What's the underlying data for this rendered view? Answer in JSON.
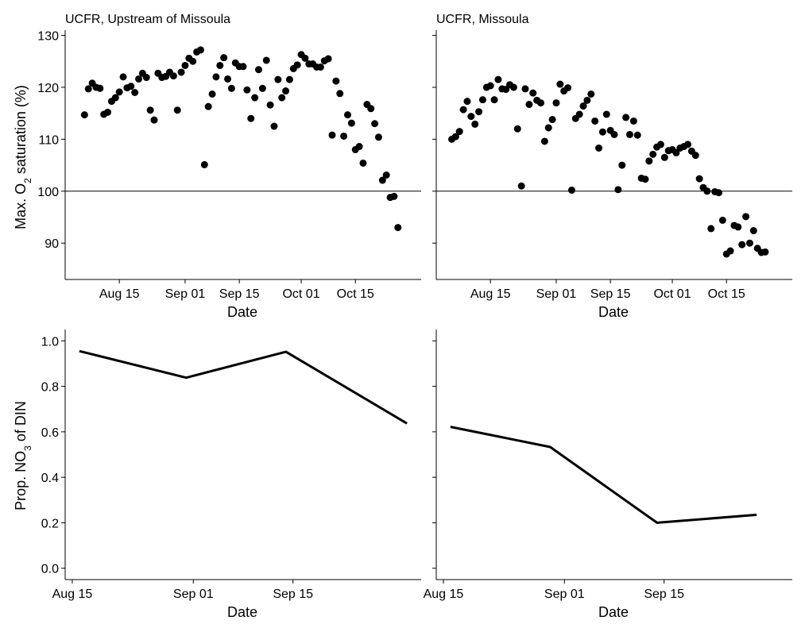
{
  "figure": {
    "panels": {
      "upstream": {
        "title": "UCFR, Upstream of Missoula"
      },
      "missoula": {
        "title": "UCFR, Missoula"
      }
    },
    "top_ylabel": {
      "pre": "Max. O",
      "sub": "2",
      "post": " saturation (%)"
    },
    "bottom_ylabel": {
      "pre": "Prop. NO",
      "sub": "3",
      "post": " of DIN"
    },
    "xlabel": "Date"
  },
  "chart_data": [
    {
      "type": "scatter",
      "panel": "UCFR, Upstream of Missoula",
      "row": "top",
      "title": "UCFR, Upstream of Missoula",
      "xlabel": "Date",
      "ylabel": "Max. O2 saturation (%)",
      "x_ticks": [
        {
          "date": "2019-08-15",
          "label": "Aug 15"
        },
        {
          "date": "2019-09-01",
          "label": "Sep 01"
        },
        {
          "date": "2019-09-15",
          "label": "Sep 15"
        },
        {
          "date": "2019-10-01",
          "label": "Oct 01"
        },
        {
          "date": "2019-10-15",
          "label": "Oct 15"
        }
      ],
      "y_ticks": [
        90,
        100,
        110,
        120,
        130
      ],
      "xlim": [
        "2019-08-01",
        "2019-11-01"
      ],
      "ylim": [
        83,
        131
      ],
      "hline": 100,
      "grid": false,
      "points": [
        {
          "x": "2019-08-06",
          "y": 114.7
        },
        {
          "x": "2019-08-07",
          "y": 119.7
        },
        {
          "x": "2019-08-08",
          "y": 120.8
        },
        {
          "x": "2019-08-09",
          "y": 120.0
        },
        {
          "x": "2019-08-10",
          "y": 119.8
        },
        {
          "x": "2019-08-11",
          "y": 114.8
        },
        {
          "x": "2019-08-12",
          "y": 115.2
        },
        {
          "x": "2019-08-13",
          "y": 117.3
        },
        {
          "x": "2019-08-14",
          "y": 118.0
        },
        {
          "x": "2019-08-15",
          "y": 119.1
        },
        {
          "x": "2019-08-16",
          "y": 122.0
        },
        {
          "x": "2019-08-17",
          "y": 119.9
        },
        {
          "x": "2019-08-18",
          "y": 120.2
        },
        {
          "x": "2019-08-19",
          "y": 119.0
        },
        {
          "x": "2019-08-20",
          "y": 121.6
        },
        {
          "x": "2019-08-21",
          "y": 122.7
        },
        {
          "x": "2019-08-22",
          "y": 121.9
        },
        {
          "x": "2019-08-23",
          "y": 115.6
        },
        {
          "x": "2019-08-24",
          "y": 113.7
        },
        {
          "x": "2019-08-25",
          "y": 122.7
        },
        {
          "x": "2019-08-26",
          "y": 121.9
        },
        {
          "x": "2019-08-27",
          "y": 122.1
        },
        {
          "x": "2019-08-28",
          "y": 122.9
        },
        {
          "x": "2019-08-29",
          "y": 122.2
        },
        {
          "x": "2019-08-30",
          "y": 115.6
        },
        {
          "x": "2019-08-31",
          "y": 122.9
        },
        {
          "x": "2019-09-01",
          "y": 124.2
        },
        {
          "x": "2019-09-02",
          "y": 125.6
        },
        {
          "x": "2019-09-03",
          "y": 125.0
        },
        {
          "x": "2019-09-04",
          "y": 126.8
        },
        {
          "x": "2019-09-05",
          "y": 127.2
        },
        {
          "x": "2019-09-06",
          "y": 105.1
        },
        {
          "x": "2019-09-07",
          "y": 116.3
        },
        {
          "x": "2019-09-08",
          "y": 118.7
        },
        {
          "x": "2019-09-09",
          "y": 122.0
        },
        {
          "x": "2019-09-10",
          "y": 124.2
        },
        {
          "x": "2019-09-11",
          "y": 125.7
        },
        {
          "x": "2019-09-12",
          "y": 121.6
        },
        {
          "x": "2019-09-13",
          "y": 119.8
        },
        {
          "x": "2019-09-14",
          "y": 124.7
        },
        {
          "x": "2019-09-15",
          "y": 124.0
        },
        {
          "x": "2019-09-16",
          "y": 124.0
        },
        {
          "x": "2019-09-17",
          "y": 119.5
        },
        {
          "x": "2019-09-18",
          "y": 114.0
        },
        {
          "x": "2019-09-19",
          "y": 118.0
        },
        {
          "x": "2019-09-20",
          "y": 123.4
        },
        {
          "x": "2019-09-21",
          "y": 119.8
        },
        {
          "x": "2019-09-22",
          "y": 125.2
        },
        {
          "x": "2019-09-23",
          "y": 116.6
        },
        {
          "x": "2019-09-24",
          "y": 112.5
        },
        {
          "x": "2019-09-25",
          "y": 121.5
        },
        {
          "x": "2019-09-26",
          "y": 118.0
        },
        {
          "x": "2019-09-27",
          "y": 119.3
        },
        {
          "x": "2019-09-28",
          "y": 121.5
        },
        {
          "x": "2019-09-29",
          "y": 123.6
        },
        {
          "x": "2019-09-30",
          "y": 124.3
        },
        {
          "x": "2019-10-01",
          "y": 126.3
        },
        {
          "x": "2019-10-02",
          "y": 125.6
        },
        {
          "x": "2019-10-03",
          "y": 124.5
        },
        {
          "x": "2019-10-04",
          "y": 124.5
        },
        {
          "x": "2019-10-05",
          "y": 123.9
        },
        {
          "x": "2019-10-06",
          "y": 123.9
        },
        {
          "x": "2019-10-07",
          "y": 125.1
        },
        {
          "x": "2019-10-08",
          "y": 125.5
        },
        {
          "x": "2019-10-09",
          "y": 110.8
        },
        {
          "x": "2019-10-10",
          "y": 121.2
        },
        {
          "x": "2019-10-11",
          "y": 118.8
        },
        {
          "x": "2019-10-12",
          "y": 110.6
        },
        {
          "x": "2019-10-13",
          "y": 114.7
        },
        {
          "x": "2019-10-14",
          "y": 113.1
        },
        {
          "x": "2019-10-15",
          "y": 108.0
        },
        {
          "x": "2019-10-16",
          "y": 108.6
        },
        {
          "x": "2019-10-17",
          "y": 105.4
        },
        {
          "x": "2019-10-18",
          "y": 116.7
        },
        {
          "x": "2019-10-19",
          "y": 115.9
        },
        {
          "x": "2019-10-20",
          "y": 113.0
        },
        {
          "x": "2019-10-21",
          "y": 110.4
        },
        {
          "x": "2019-10-22",
          "y": 102.1
        },
        {
          "x": "2019-10-23",
          "y": 103.1
        },
        {
          "x": "2019-10-24",
          "y": 98.8
        },
        {
          "x": "2019-10-25",
          "y": 99.0
        },
        {
          "x": "2019-10-26",
          "y": 93.0
        }
      ]
    },
    {
      "type": "scatter",
      "panel": "UCFR, Missoula",
      "row": "top",
      "title": "UCFR, Missoula",
      "xlabel": "Date",
      "ylabel": "Max. O2 saturation (%)",
      "x_ticks": [
        {
          "date": "2019-08-15",
          "label": "Aug 15"
        },
        {
          "date": "2019-09-01",
          "label": "Sep 01"
        },
        {
          "date": "2019-09-15",
          "label": "Sep 15"
        },
        {
          "date": "2019-10-01",
          "label": "Oct 01"
        },
        {
          "date": "2019-10-15",
          "label": "Oct 15"
        }
      ],
      "y_ticks": [
        90,
        100,
        110,
        120,
        130
      ],
      "xlim": [
        "2019-08-01",
        "2019-11-01"
      ],
      "ylim": [
        83,
        131
      ],
      "hline": 100,
      "grid": false,
      "points": [
        {
          "x": "2019-08-05",
          "y": 110.0
        },
        {
          "x": "2019-08-06",
          "y": 110.5
        },
        {
          "x": "2019-08-07",
          "y": 111.5
        },
        {
          "x": "2019-08-08",
          "y": 115.7
        },
        {
          "x": "2019-08-09",
          "y": 117.3
        },
        {
          "x": "2019-08-10",
          "y": 114.4
        },
        {
          "x": "2019-08-11",
          "y": 112.9
        },
        {
          "x": "2019-08-12",
          "y": 115.3
        },
        {
          "x": "2019-08-13",
          "y": 117.6
        },
        {
          "x": "2019-08-14",
          "y": 120.0
        },
        {
          "x": "2019-08-15",
          "y": 120.3
        },
        {
          "x": "2019-08-16",
          "y": 117.6
        },
        {
          "x": "2019-08-17",
          "y": 121.5
        },
        {
          "x": "2019-08-18",
          "y": 119.7
        },
        {
          "x": "2019-08-19",
          "y": 119.6
        },
        {
          "x": "2019-08-20",
          "y": 120.5
        },
        {
          "x": "2019-08-21",
          "y": 120.0
        },
        {
          "x": "2019-08-22",
          "y": 112.0
        },
        {
          "x": "2019-08-23",
          "y": 101.0
        },
        {
          "x": "2019-08-24",
          "y": 119.7
        },
        {
          "x": "2019-08-25",
          "y": 116.7
        },
        {
          "x": "2019-08-26",
          "y": 118.9
        },
        {
          "x": "2019-08-27",
          "y": 117.5
        },
        {
          "x": "2019-08-28",
          "y": 117.0
        },
        {
          "x": "2019-08-29",
          "y": 109.6
        },
        {
          "x": "2019-08-30",
          "y": 112.2
        },
        {
          "x": "2019-08-31",
          "y": 113.8
        },
        {
          "x": "2019-09-01",
          "y": 117.0
        },
        {
          "x": "2019-09-02",
          "y": 120.6
        },
        {
          "x": "2019-09-03",
          "y": 119.3
        },
        {
          "x": "2019-09-04",
          "y": 119.9
        },
        {
          "x": "2019-09-05",
          "y": 100.2
        },
        {
          "x": "2019-09-06",
          "y": 114.0
        },
        {
          "x": "2019-09-07",
          "y": 114.8
        },
        {
          "x": "2019-09-08",
          "y": 116.4
        },
        {
          "x": "2019-09-09",
          "y": 117.5
        },
        {
          "x": "2019-09-10",
          "y": 118.7
        },
        {
          "x": "2019-09-11",
          "y": 113.5
        },
        {
          "x": "2019-09-12",
          "y": 108.3
        },
        {
          "x": "2019-09-13",
          "y": 111.4
        },
        {
          "x": "2019-09-14",
          "y": 114.8
        },
        {
          "x": "2019-09-15",
          "y": 111.7
        },
        {
          "x": "2019-09-16",
          "y": 110.9
        },
        {
          "x": "2019-09-17",
          "y": 100.3
        },
        {
          "x": "2019-09-18",
          "y": 105.0
        },
        {
          "x": "2019-09-19",
          "y": 114.2
        },
        {
          "x": "2019-09-20",
          "y": 110.9
        },
        {
          "x": "2019-09-21",
          "y": 113.5
        },
        {
          "x": "2019-09-22",
          "y": 110.8
        },
        {
          "x": "2019-09-23",
          "y": 102.5
        },
        {
          "x": "2019-09-24",
          "y": 102.3
        },
        {
          "x": "2019-09-25",
          "y": 105.8
        },
        {
          "x": "2019-09-26",
          "y": 107.1
        },
        {
          "x": "2019-09-27",
          "y": 108.5
        },
        {
          "x": "2019-09-28",
          "y": 109.0
        },
        {
          "x": "2019-09-29",
          "y": 106.5
        },
        {
          "x": "2019-09-30",
          "y": 107.8
        },
        {
          "x": "2019-10-01",
          "y": 108.0
        },
        {
          "x": "2019-10-02",
          "y": 107.4
        },
        {
          "x": "2019-10-03",
          "y": 108.3
        },
        {
          "x": "2019-10-04",
          "y": 108.6
        },
        {
          "x": "2019-10-05",
          "y": 109.0
        },
        {
          "x": "2019-10-06",
          "y": 107.7
        },
        {
          "x": "2019-10-07",
          "y": 106.9
        },
        {
          "x": "2019-10-08",
          "y": 102.4
        },
        {
          "x": "2019-10-09",
          "y": 100.7
        },
        {
          "x": "2019-10-10",
          "y": 100.0
        },
        {
          "x": "2019-10-11",
          "y": 92.8
        },
        {
          "x": "2019-10-12",
          "y": 99.9
        },
        {
          "x": "2019-10-13",
          "y": 99.7
        },
        {
          "x": "2019-10-14",
          "y": 94.4
        },
        {
          "x": "2019-10-15",
          "y": 87.9
        },
        {
          "x": "2019-10-16",
          "y": 88.5
        },
        {
          "x": "2019-10-17",
          "y": 93.4
        },
        {
          "x": "2019-10-18",
          "y": 93.1
        },
        {
          "x": "2019-10-19",
          "y": 89.7
        },
        {
          "x": "2019-10-20",
          "y": 95.1
        },
        {
          "x": "2019-10-21",
          "y": 90.0
        },
        {
          "x": "2019-10-22",
          "y": 92.4
        },
        {
          "x": "2019-10-23",
          "y": 89.0
        },
        {
          "x": "2019-10-24",
          "y": 88.2
        },
        {
          "x": "2019-10-25",
          "y": 88.3
        }
      ]
    },
    {
      "type": "line",
      "panel": "UCFR, Upstream of Missoula",
      "row": "bottom",
      "xlabel": "Date",
      "ylabel": "Prop. NO3 of DIN",
      "x_ticks": [
        {
          "date": "2019-08-15",
          "label": "Aug 15"
        },
        {
          "date": "2019-09-01",
          "label": "Sep 01"
        },
        {
          "date": "2019-09-15",
          "label": "Sep 15"
        }
      ],
      "y_ticks": [
        0.0,
        0.2,
        0.4,
        0.6,
        0.8,
        1.0
      ],
      "y_tick_labels": [
        "0.0",
        "0.2",
        "0.4",
        "0.6",
        "0.8",
        "1.0"
      ],
      "xlim": [
        "2019-08-14",
        "2019-10-03"
      ],
      "ylim": [
        -0.05,
        1.05
      ],
      "grid": false,
      "x": [
        "2019-08-16",
        "2019-08-31",
        "2019-09-14",
        "2019-10-01"
      ],
      "y": [
        0.955,
        0.838,
        0.952,
        0.637
      ]
    },
    {
      "type": "line",
      "panel": "UCFR, Missoula",
      "row": "bottom",
      "xlabel": "Date",
      "ylabel": "Prop. NO3 of DIN",
      "x_ticks": [
        {
          "date": "2019-08-15",
          "label": "Aug 15"
        },
        {
          "date": "2019-09-01",
          "label": "Sep 01"
        },
        {
          "date": "2019-09-15",
          "label": "Sep 15"
        }
      ],
      "y_ticks": [
        0.0,
        0.2,
        0.4,
        0.6,
        0.8,
        1.0
      ],
      "y_tick_labels": [
        "0.0",
        "0.2",
        "0.4",
        "0.6",
        "0.8",
        "1.0"
      ],
      "xlim": [
        "2019-08-14",
        "2019-10-03"
      ],
      "ylim": [
        -0.05,
        1.05
      ],
      "grid": false,
      "x": [
        "2019-08-16",
        "2019-08-30",
        "2019-09-14",
        "2019-09-28"
      ],
      "y": [
        0.622,
        0.533,
        0.2,
        0.235
      ]
    }
  ]
}
